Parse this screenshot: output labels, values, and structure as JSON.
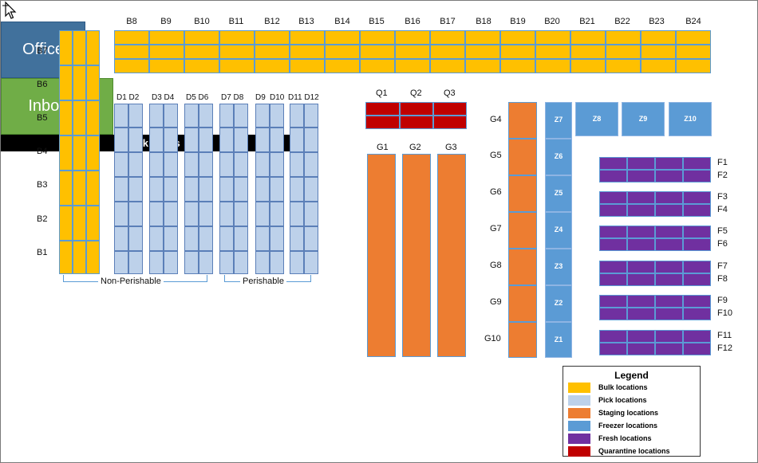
{
  "top_labels": [
    "B8",
    "B9",
    "B10",
    "B11",
    "B12",
    "B13",
    "B14",
    "B15",
    "B16",
    "B17",
    "B18",
    "B19",
    "B20",
    "B21",
    "B22",
    "B23",
    "B24"
  ],
  "left_labels": [
    "B7",
    "B6",
    "B5",
    "B4",
    "B3",
    "B2",
    "B1"
  ],
  "pick_labels": [
    "D1 D2",
    "D3 D4",
    "D5 D6",
    "D7 D8",
    "D9",
    "D10",
    "D11 D12"
  ],
  "non_perishable": "Non-Perishable",
  "perishable": "Perishable",
  "office": "Office",
  "inbound": "Inbound",
  "dock": "Dock doors",
  "quarantine_labels": [
    "Q1",
    "Q2",
    "Q3"
  ],
  "staging_labels": [
    "G1",
    "G2",
    "G3"
  ],
  "g_left_labels": [
    "G4",
    "G5",
    "G6",
    "G7",
    "G8",
    "G9",
    "G10"
  ],
  "freezer_col": [
    "Z7",
    "Z6",
    "Z5",
    "Z4",
    "Z3",
    "Z2",
    "Z1"
  ],
  "freezer_row": [
    "Z8",
    "Z9",
    "Z10"
  ],
  "fresh_labels": [
    [
      "F1",
      "F2"
    ],
    [
      "F3",
      "F4"
    ],
    [
      "F5",
      "F6"
    ],
    [
      "F7",
      "F8"
    ],
    [
      "F9",
      "F10"
    ],
    [
      "F11",
      "F12"
    ]
  ],
  "legend": {
    "title": "Legend",
    "items": [
      {
        "label": "Bulk locations",
        "color": "#FFC000"
      },
      {
        "label": "Pick locations",
        "color": "#BDD1EA"
      },
      {
        "label": "Staging locations",
        "color": "#ED7D31"
      },
      {
        "label": "Freezer locations",
        "color": "#5B9BD5"
      },
      {
        "label": "Fresh locations",
        "color": "#7030A0"
      },
      {
        "label": "Quarantine locations",
        "color": "#C00000"
      }
    ]
  },
  "colors": {
    "bulk": "#FFC000",
    "pick": "#BDD1EA",
    "staging": "#ED7D31",
    "freezer": "#5B9BD5",
    "fresh": "#7030A0",
    "quarantine": "#C00000",
    "office": "#41719C",
    "inbound": "#70AD47",
    "dock": "#000000"
  }
}
